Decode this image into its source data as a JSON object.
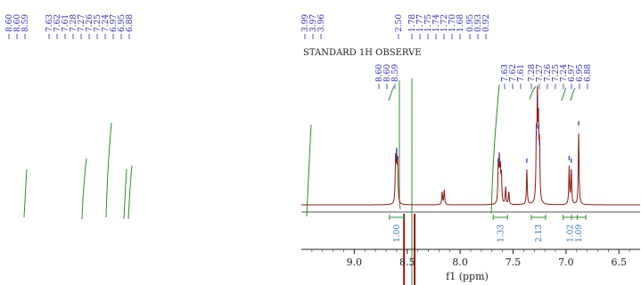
{
  "chart_data": {
    "type": "line",
    "banner": "STANDARD 1H OBSERVE",
    "xlabel": "f1 (ppm)",
    "xlim": [
      9.5,
      6.3
    ],
    "x_reversed": true,
    "ticks": [
      9.0,
      8.5,
      8.0,
      7.5,
      7.0,
      6.5
    ],
    "tick_labels": [
      "9.0",
      "8.5",
      "8.0",
      "7.5",
      "7.0",
      "6.5"
    ],
    "peak_labels_left": [
      "8.60",
      "8.60",
      "8.59",
      "7.63",
      "7.62",
      "7.61",
      "7.28",
      "7.27",
      "7.26",
      "7.25",
      "7.24",
      "6.97",
      "6.95",
      "6.88"
    ],
    "peak_labels_right_a": [
      "3.99",
      "3.97",
      "3.96",
      "2.50",
      "1.78",
      "1.77",
      "1.75",
      "1.74",
      "1.72",
      "1.70",
      "1.68",
      "0.95",
      "0.93",
      "0.92"
    ],
    "peak_labels_right_b": [
      "8.60",
      "8.60",
      "8.59",
      "7.63",
      "7.62",
      "7.61",
      "7.28",
      "7.27",
      "7.26",
      "7.25",
      "7.24",
      "6.97",
      "6.95",
      "6.88"
    ],
    "integrals": [
      {
        "x": 8.6,
        "value": "1.00"
      },
      {
        "x": 7.62,
        "value": "1.33"
      },
      {
        "x": 7.26,
        "value": "2.13"
      },
      {
        "x": 6.96,
        "value": "1.02"
      },
      {
        "x": 6.88,
        "value": "1.09"
      }
    ],
    "peaks": [
      {
        "x": 8.61,
        "height": 0.32
      },
      {
        "x": 8.6,
        "height": 0.36
      },
      {
        "x": 8.59,
        "height": 0.3
      },
      {
        "x": 8.17,
        "height": 0.1
      },
      {
        "x": 8.15,
        "height": 0.12
      },
      {
        "x": 7.64,
        "height": 0.28
      },
      {
        "x": 7.63,
        "height": 0.32
      },
      {
        "x": 7.62,
        "height": 0.25
      },
      {
        "x": 7.61,
        "height": 0.22
      },
      {
        "x": 7.57,
        "height": 0.14
      },
      {
        "x": 7.54,
        "height": 0.1
      },
      {
        "x": 7.37,
        "height": 0.28
      },
      {
        "x": 7.28,
        "height": 0.5
      },
      {
        "x": 7.27,
        "height": 0.78
      },
      {
        "x": 7.26,
        "height": 0.55
      },
      {
        "x": 7.25,
        "height": 0.42
      },
      {
        "x": 6.97,
        "height": 0.3
      },
      {
        "x": 6.95,
        "height": 0.28
      },
      {
        "x": 6.88,
        "height": 0.58
      }
    ],
    "colors": {
      "spectrum": "#8b1a1a",
      "integral": "#2e8b2e",
      "labels": "#2b2bb0",
      "integral_labels": "#2f6fa8",
      "solvent": "#a01010"
    }
  }
}
